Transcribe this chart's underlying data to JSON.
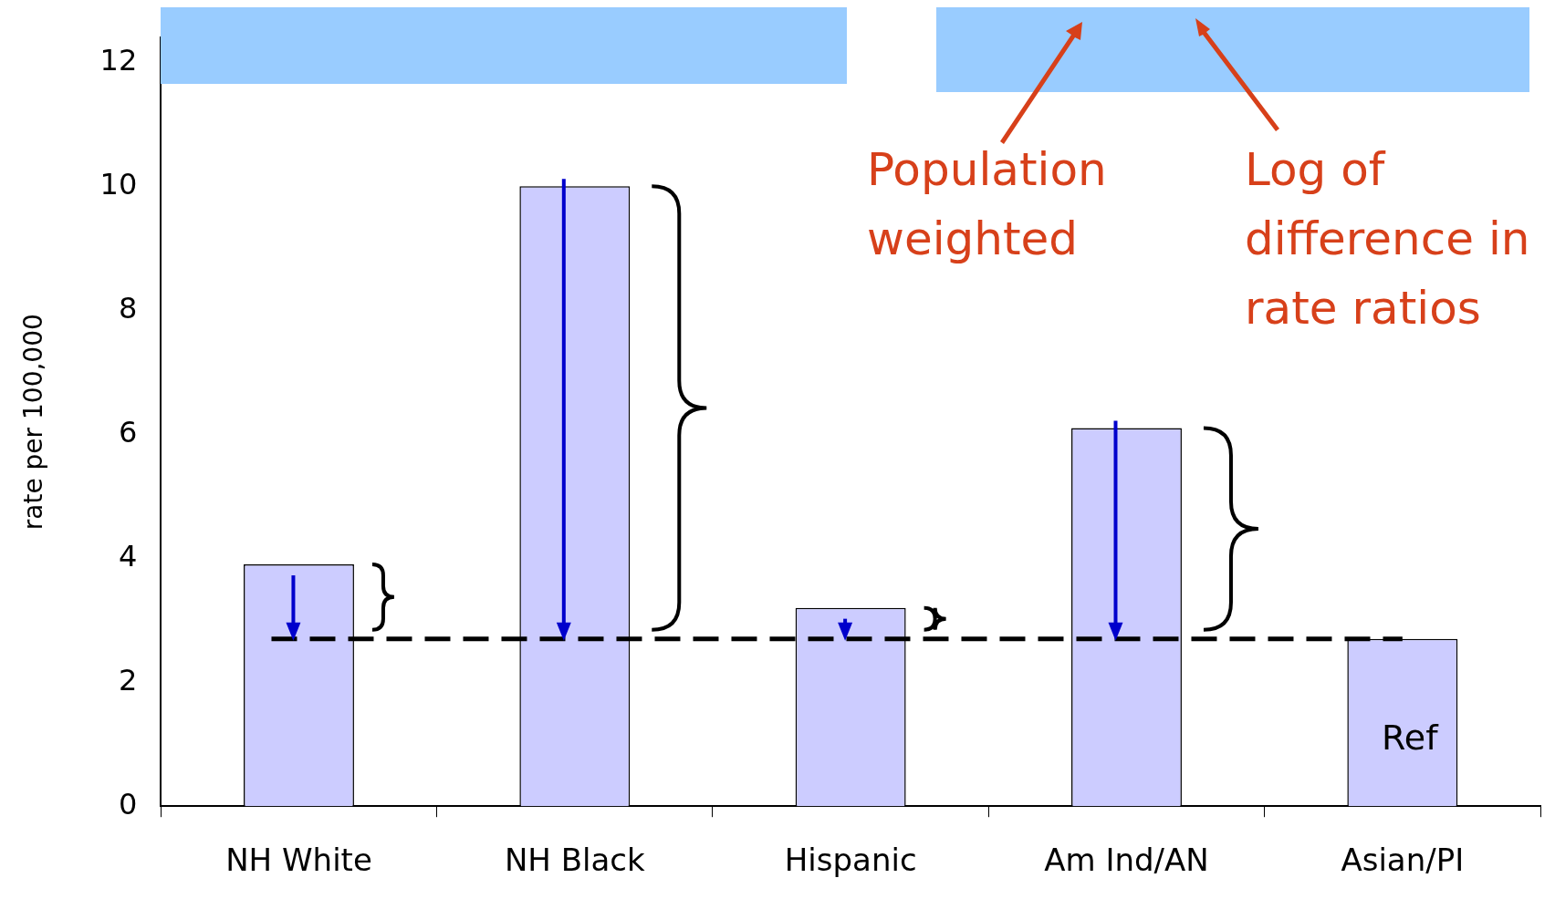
{
  "chart_data": {
    "type": "bar",
    "ylabel": "rate per 100,000",
    "categories": [
      "NH White",
      "NH Black",
      "Hispanic",
      "Am Ind/AN",
      "Asian/PI"
    ],
    "values": [
      3.9,
      10.0,
      3.2,
      6.1,
      2.7
    ],
    "color": "#ccccff",
    "ylim": [
      0,
      12.4
    ],
    "yticks": [
      0,
      2,
      4,
      6,
      8,
      10,
      12
    ],
    "grid": false,
    "ref_lines": [
      {
        "axis": "y",
        "value": 2.7,
        "color": "#000000",
        "line_style": "dashed"
      }
    ],
    "annotations": [
      "Ref",
      "Population weighted",
      "Log of difference in rate ratios"
    ]
  }
}
